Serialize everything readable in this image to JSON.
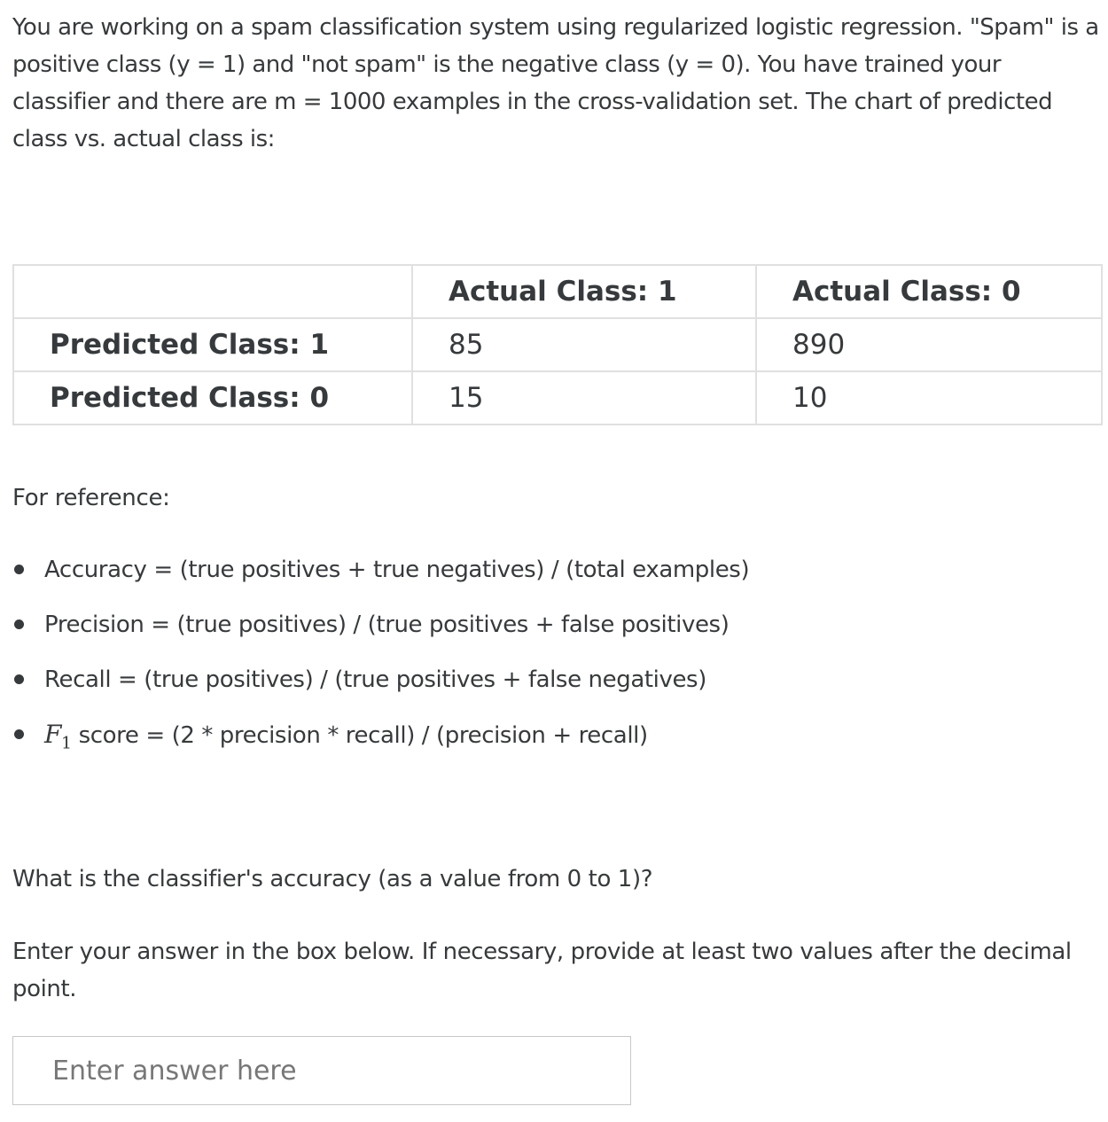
{
  "question": {
    "intro": "You are working on a spam classification system using regularized logistic regression. \"Spam\" is a positive class (y = 1) and \"not spam\" is the negative class (y = 0). You have trained your classifier and there are m = 1000 examples in the cross-validation set. The chart of predicted class vs. actual class is:",
    "table": {
      "header": [
        "",
        "Actual Class: 1",
        "Actual Class: 0"
      ],
      "rows": [
        {
          "label": "Predicted Class: 1",
          "actual_1": "85",
          "actual_0": "890"
        },
        {
          "label": "Predicted Class: 0",
          "actual_1": "15",
          "actual_0": "10"
        }
      ]
    },
    "reference_label": "For reference:",
    "formulas": [
      "Accuracy = (true positives + true negatives) / (total examples)",
      "Precision = (true positives) / (true positives + false positives)",
      "Recall = (true positives) / (true positives + false negatives)"
    ],
    "f1": {
      "symbol": "F",
      "subscript": "1",
      "text": " score = (2 * precision * recall) / (precision + recall)"
    },
    "prompt": "What is the classifier's accuracy (as a value from 0 to 1)?",
    "instruction": "Enter your answer in the box below. If necessary, provide at least two values after the decimal point."
  },
  "answer": {
    "placeholder": "Enter answer here",
    "value": ""
  }
}
